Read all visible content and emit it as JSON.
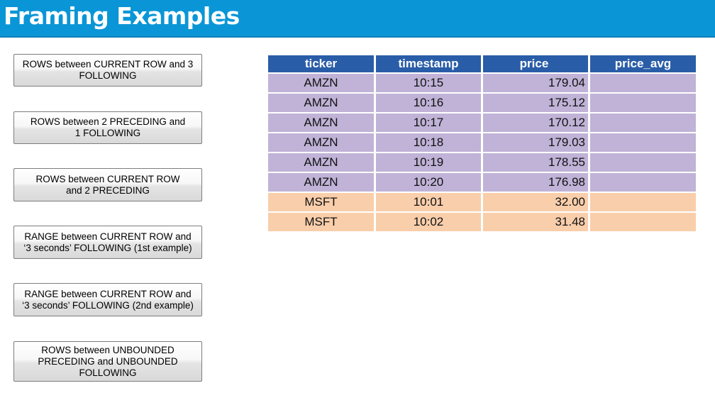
{
  "header": {
    "title": "Framing Examples"
  },
  "buttons": [
    "ROWS between CURRENT ROW and 3\nFOLLOWING",
    "ROWS between 2 PRECEDING and\n1 FOLLOWING",
    "ROWS between CURRENT ROW\nand 2 PRECEDING",
    "RANGE between CURRENT ROW and\n‘3 seconds’ FOLLOWING (1st example)",
    "RANGE between CURRENT ROW and\n‘3 seconds’ FOLLOWING (2nd example)",
    "ROWS between UNBOUNDED\nPRECEDING and UNBOUNDED\nFOLLOWING"
  ],
  "table": {
    "columns": [
      "ticker",
      "timestamp",
      "price",
      "price_avg"
    ],
    "rows": [
      {
        "ticker": "AMZN",
        "timestamp": "10:15",
        "price": "179.04",
        "price_avg": "",
        "group": "purple"
      },
      {
        "ticker": "AMZN",
        "timestamp": "10:16",
        "price": "175.12",
        "price_avg": "",
        "group": "purple"
      },
      {
        "ticker": "AMZN",
        "timestamp": "10:17",
        "price": "170.12",
        "price_avg": "",
        "group": "purple"
      },
      {
        "ticker": "AMZN",
        "timestamp": "10:18",
        "price": "179.03",
        "price_avg": "",
        "group": "purple"
      },
      {
        "ticker": "AMZN",
        "timestamp": "10:19",
        "price": "178.55",
        "price_avg": "",
        "group": "purple"
      },
      {
        "ticker": "AMZN",
        "timestamp": "10:20",
        "price": "176.98",
        "price_avg": "",
        "group": "purple"
      },
      {
        "ticker": "MSFT",
        "timestamp": "10:01",
        "price": "32.00",
        "price_avg": "",
        "group": "orange"
      },
      {
        "ticker": "MSFT",
        "timestamp": "10:02",
        "price": "31.48",
        "price_avg": "",
        "group": "orange"
      }
    ]
  },
  "colors": {
    "header_bg": "#0a96d6",
    "table_header_bg": "#2a5da8",
    "amzn_row_bg": "#c0b3d7",
    "msft_row_bg": "#f9ceab"
  }
}
